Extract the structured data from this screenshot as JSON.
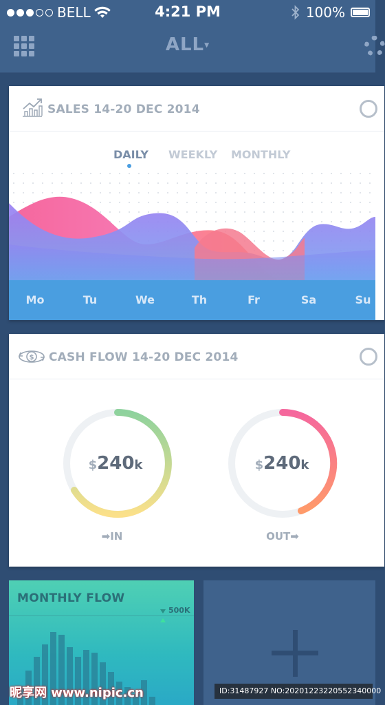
{
  "status_bar": {
    "carrier": "BELL",
    "time": "4:21 PM",
    "battery": "100%",
    "signal_icon": "signal-dots-icon",
    "wifi_icon": "wifi-icon",
    "bluetooth_icon": "bluetooth-icon"
  },
  "nav": {
    "title": "ALL",
    "caret": "▾"
  },
  "sales_card": {
    "title": "SALES 14-20 DEC 2014",
    "tabs": [
      "DAILY",
      "WEEKLY",
      "MONTHLY"
    ],
    "active_tab": "DAILY",
    "days": [
      "Mo",
      "Tu",
      "We",
      "Th",
      "Fr",
      "Sa",
      "Su"
    ]
  },
  "cashflow_card": {
    "title": "CASH FLOW 14-20 DEC 2014",
    "in": {
      "currency": "$",
      "value": "240",
      "unit": "k",
      "label": "IN",
      "arrow": "➡"
    },
    "out": {
      "currency": "$",
      "value": "240",
      "unit": "k",
      "label": "OUT",
      "arrow": "➡"
    }
  },
  "monthly_flow": {
    "title": "MONTHLY FLOW",
    "marker_label": "500K"
  },
  "watermark": {
    "brand": "昵享网 www.nipic.cn",
    "id_text": "ID:31487927 NO:20201223220552340000"
  },
  "colors": {
    "background": "#2f4d73",
    "header": "#3f628c",
    "accent_blue": "#4a9ee0",
    "pink": "#f5679d",
    "purple": "#8d86f2",
    "teal": "#2fb9bf"
  }
}
